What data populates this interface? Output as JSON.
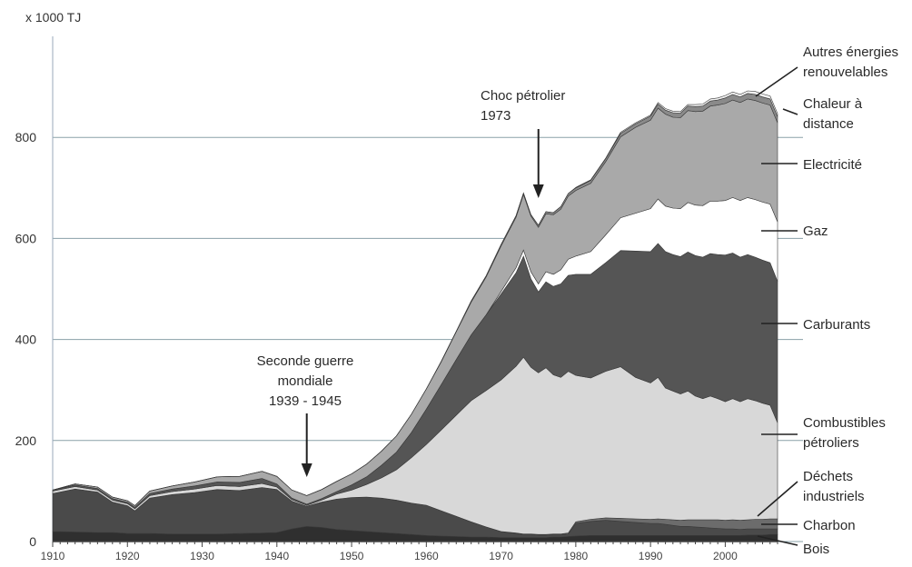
{
  "chart_data": {
    "type": "area",
    "stacked": true,
    "ylabel": "x 1000 TJ",
    "xlim": [
      1910,
      2007
    ],
    "ylim": [
      0,
      1000
    ],
    "yticks": [
      0,
      200,
      400,
      600,
      800
    ],
    "xticks": [
      1910,
      1920,
      1930,
      1940,
      1950,
      1960,
      1970,
      1980,
      1990,
      2000
    ],
    "grid": true,
    "x": [
      1910,
      1913,
      1916,
      1918,
      1920,
      1921,
      1923,
      1926,
      1929,
      1932,
      1935,
      1938,
      1940,
      1942,
      1944,
      1946,
      1948,
      1950,
      1952,
      1954,
      1956,
      1958,
      1960,
      1962,
      1964,
      1966,
      1968,
      1970,
      1972,
      1973,
      1974,
      1975,
      1976,
      1977,
      1978,
      1979,
      1980,
      1982,
      1984,
      1986,
      1988,
      1990,
      1991,
      1992,
      1993,
      1994,
      1995,
      1996,
      1997,
      1998,
      1999,
      2000,
      2001,
      2002,
      2003,
      2004,
      2005,
      2006,
      2007
    ],
    "series": [
      {
        "name": "Bois",
        "color": "#2f2f2f",
        "values": [
          20,
          19,
          18,
          18,
          16,
          16,
          16,
          15,
          15,
          15,
          16,
          17,
          18,
          25,
          30,
          28,
          24,
          22,
          20,
          18,
          16,
          14,
          12,
          11,
          10,
          9,
          9,
          8,
          8,
          8,
          8,
          8,
          8,
          9,
          9,
          10,
          11,
          12,
          12,
          12,
          12,
          12,
          12,
          12,
          12,
          12,
          12,
          12,
          12,
          12,
          12,
          12,
          12,
          12,
          13,
          13,
          13,
          14,
          14
        ]
      },
      {
        "name": "Charbon",
        "color": "#4a4a4a",
        "values": [
          75,
          85,
          80,
          60,
          55,
          45,
          70,
          78,
          82,
          88,
          85,
          90,
          85,
          55,
          40,
          50,
          60,
          65,
          68,
          68,
          66,
          62,
          60,
          50,
          40,
          30,
          20,
          12,
          8,
          6,
          6,
          5,
          5,
          5,
          5,
          5,
          25,
          28,
          30,
          28,
          26,
          24,
          24,
          22,
          20,
          18,
          18,
          17,
          16,
          15,
          14,
          13,
          13,
          12,
          12,
          12,
          12,
          11,
          11
        ]
      },
      {
        "name": "Déchets industriels",
        "color": "#6c6c6c",
        "values": [
          0,
          0,
          0,
          0,
          0,
          0,
          0,
          0,
          0,
          0,
          0,
          0,
          0,
          0,
          0,
          0,
          0,
          0,
          0,
          0,
          0,
          0,
          0,
          0,
          0,
          0,
          0,
          0,
          1,
          1,
          1,
          1,
          1,
          1,
          1,
          2,
          3,
          4,
          5,
          6,
          7,
          8,
          9,
          10,
          11,
          12,
          13,
          14,
          15,
          16,
          17,
          17,
          18,
          18,
          18,
          19,
          19,
          20,
          20
        ]
      },
      {
        "name": "Combustibles pétroliers",
        "color": "#d8d8d8",
        "values": [
          5,
          5,
          4,
          4,
          4,
          4,
          5,
          6,
          7,
          8,
          8,
          8,
          5,
          3,
          2,
          4,
          10,
          15,
          25,
          40,
          60,
          90,
          120,
          160,
          200,
          240,
          270,
          300,
          330,
          350,
          330,
          320,
          330,
          315,
          310,
          320,
          290,
          280,
          290,
          300,
          280,
          270,
          280,
          260,
          255,
          250,
          255,
          245,
          240,
          245,
          240,
          235,
          240,
          235,
          240,
          235,
          230,
          225,
          190
        ]
      },
      {
        "name": "Carburants",
        "color": "#555555",
        "values": [
          2,
          3,
          3,
          3,
          3,
          3,
          4,
          5,
          6,
          7,
          8,
          10,
          6,
          3,
          2,
          3,
          5,
          10,
          15,
          25,
          35,
          50,
          70,
          90,
          110,
          130,
          150,
          170,
          185,
          200,
          175,
          160,
          170,
          175,
          185,
          190,
          200,
          205,
          215,
          230,
          250,
          260,
          265,
          270,
          270,
          272,
          275,
          278,
          280,
          282,
          285,
          290,
          288,
          286,
          285,
          284,
          283,
          282,
          280
        ]
      },
      {
        "name": "Gaz",
        "color": "#ffffff",
        "values": [
          0,
          0,
          0,
          0,
          0,
          0,
          0,
          0,
          0,
          0,
          0,
          0,
          0,
          0,
          0,
          0,
          0,
          0,
          0,
          0,
          0,
          0,
          0,
          0,
          0,
          0,
          0,
          5,
          10,
          12,
          14,
          16,
          20,
          24,
          28,
          32,
          36,
          45,
          55,
          65,
          75,
          85,
          88,
          90,
          92,
          95,
          98,
          100,
          102,
          104,
          106,
          108,
          110,
          112,
          113,
          114,
          115,
          116,
          118
        ]
      },
      {
        "name": "Electricité",
        "color": "#a9a9a9",
        "values": [
          0,
          2,
          3,
          3,
          3,
          3,
          5,
          6,
          8,
          10,
          12,
          14,
          15,
          16,
          17,
          18,
          20,
          22,
          25,
          28,
          32,
          36,
          40,
          45,
          55,
          65,
          75,
          90,
          100,
          110,
          110,
          112,
          115,
          118,
          120,
          125,
          130,
          135,
          145,
          160,
          170,
          175,
          180,
          182,
          180,
          180,
          182,
          185,
          187,
          188,
          190,
          192,
          193,
          194,
          195,
          196,
          196,
          196,
          196
        ]
      },
      {
        "name": "Chaleur à distance",
        "color": "#8a8a8a",
        "values": [
          0,
          0,
          0,
          0,
          0,
          0,
          0,
          0,
          0,
          0,
          0,
          0,
          0,
          0,
          0,
          0,
          0,
          0,
          0,
          0,
          0,
          0,
          0,
          1,
          1,
          2,
          2,
          3,
          3,
          3,
          3,
          4,
          4,
          4,
          5,
          5,
          5,
          6,
          6,
          7,
          7,
          8,
          8,
          8,
          9,
          9,
          9,
          10,
          10,
          10,
          10,
          11,
          11,
          11,
          11,
          12,
          12,
          12,
          12
        ]
      },
      {
        "name": "Autres énergies renouvelables",
        "color": "#f2f2f2",
        "values": [
          0,
          0,
          0,
          0,
          0,
          0,
          0,
          0,
          0,
          0,
          0,
          0,
          0,
          0,
          0,
          0,
          0,
          0,
          0,
          0,
          0,
          0,
          0,
          0,
          0,
          0,
          0,
          0,
          0,
          0,
          0,
          0,
          0,
          0,
          0,
          0,
          1,
          1,
          1,
          2,
          2,
          2,
          3,
          3,
          3,
          3,
          3,
          4,
          4,
          4,
          4,
          5,
          5,
          5,
          5,
          6,
          6,
          6,
          6
        ]
      }
    ],
    "legend_position": "right",
    "annotations": [
      {
        "lines": [
          "Choc pétrolier",
          "1973"
        ],
        "x": 1975
      },
      {
        "lines": [
          "Seconde guerre",
          "mondiale",
          "1939 - 1945"
        ],
        "x": 1944
      }
    ]
  }
}
